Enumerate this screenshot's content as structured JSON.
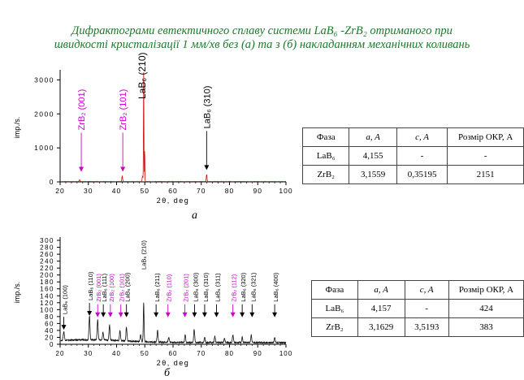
{
  "title": {
    "line1": "Дифрактограми евтектичного сплаву системи LaB₆ -ZrB₂ отриманого при",
    "line2": "швидкості кристалізації 1 мм/хв без (а) та з (б) накладанням механічних коливань"
  },
  "captions": {
    "a": "а",
    "b": "б"
  },
  "colors": {
    "line_a": "#cc1111",
    "line_b": "#111111",
    "zr_label": "#cc00cc",
    "la_label": "#000000",
    "title": "#1a7a2a"
  },
  "chart_data": [
    {
      "type": "line",
      "xlabel": "2θ, deg",
      "ylabel": "imp./s.",
      "xlim": [
        20,
        100
      ],
      "ylim": [
        0,
        3200
      ],
      "xticks": [
        20,
        30,
        40,
        50,
        60,
        70,
        80,
        90,
        100
      ],
      "yticks": [
        0,
        1000,
        2000,
        3000
      ],
      "xticklabels": [
        "20",
        "30",
        "40",
        "50",
        "60",
        "70",
        "80",
        "90",
        "100"
      ],
      "yticklabels": [
        "0",
        "1000",
        "2000",
        "3000"
      ],
      "baseline": 10,
      "peaks": [
        {
          "x": 26.9,
          "y": 50,
          "w": 0.25
        },
        {
          "x": 42.0,
          "y": 160,
          "w": 0.2
        },
        {
          "x": 49.2,
          "y": 150,
          "w": 0.2
        },
        {
          "x": 49.6,
          "y": 3300,
          "w": 0.12
        },
        {
          "x": 49.95,
          "y": 900,
          "w": 0.1
        },
        {
          "x": 71.9,
          "y": 200,
          "w": 0.18
        }
      ],
      "annotations": [
        {
          "x": 27.5,
          "text": "ZrB₂ (001)",
          "phase": "Zr",
          "y_tip": 300
        },
        {
          "x": 42.2,
          "text": "ZrB₂ (101)",
          "phase": "Zr",
          "y_tip": 300
        },
        {
          "x": 49.0,
          "text": "LaB₆ (210)",
          "phase": "La",
          "y_tip": -1
        },
        {
          "x": 71.9,
          "text": "LaB₆ (310)",
          "phase": "La",
          "y_tip": 350
        }
      ]
    },
    {
      "type": "line",
      "xlabel": "2θ, deg",
      "ylabel": "imp./s.",
      "xlim": [
        20,
        100
      ],
      "ylim": [
        0,
        300
      ],
      "xticks": [
        20,
        30,
        40,
        50,
        60,
        70,
        80,
        90,
        100
      ],
      "yticks": [
        0,
        20,
        40,
        60,
        80,
        100,
        120,
        140,
        160,
        180,
        200,
        220,
        240,
        260,
        280,
        300
      ],
      "xticklabels": [
        "20",
        "30",
        "40",
        "50",
        "60",
        "70",
        "80",
        "90",
        "100"
      ],
      "yticklabels": [
        "0",
        "20",
        "40",
        "60",
        "80",
        "100",
        "120",
        "140",
        "160",
        "180",
        "200",
        "220",
        "240",
        "260",
        "280",
        "300"
      ],
      "baseline": 5,
      "peaks": [
        {
          "x": 21.3,
          "y": 25,
          "w": 0.3
        },
        {
          "x": 30.4,
          "y": 70,
          "w": 0.25
        },
        {
          "x": 33.3,
          "y": 60,
          "w": 0.25
        },
        {
          "x": 35.2,
          "y": 22,
          "w": 0.25
        },
        {
          "x": 37.5,
          "y": 45,
          "w": 0.25
        },
        {
          "x": 41.2,
          "y": 30,
          "w": 0.25
        },
        {
          "x": 43.5,
          "y": 40,
          "w": 0.25
        },
        {
          "x": 48.5,
          "y": 20,
          "w": 0.25
        },
        {
          "x": 49.6,
          "y": 112,
          "w": 0.2
        },
        {
          "x": 54.5,
          "y": 35,
          "w": 0.25
        },
        {
          "x": 58.5,
          "y": 14,
          "w": 0.25
        },
        {
          "x": 64.3,
          "y": 22,
          "w": 0.25
        },
        {
          "x": 67.5,
          "y": 38,
          "w": 0.25
        },
        {
          "x": 71.2,
          "y": 15,
          "w": 0.25
        },
        {
          "x": 74.8,
          "y": 18,
          "w": 0.25
        },
        {
          "x": 78.2,
          "y": 12,
          "w": 0.25
        },
        {
          "x": 81.2,
          "y": 22,
          "w": 0.25
        },
        {
          "x": 84.5,
          "y": 15,
          "w": 0.25
        },
        {
          "x": 87.7,
          "y": 22,
          "w": 0.25
        },
        {
          "x": 96.0,
          "y": 14,
          "w": 0.25
        }
      ],
      "annotations": [
        {
          "x": 21.3,
          "text": "LaB₆ (100)",
          "phase": "La",
          "y_tip": 42
        },
        {
          "x": 30.4,
          "text": "LaB₆ (110)",
          "phase": "La",
          "y_tip": 82
        },
        {
          "x": 33.3,
          "text": "ZrB₂ (001)",
          "phase": "Zr",
          "y_tip": 78
        },
        {
          "x": 35.3,
          "text": "LaB₆ (111)",
          "phase": "La",
          "y_tip": 78
        },
        {
          "x": 37.8,
          "text": "ZrB₂ (100)",
          "phase": "Zr",
          "y_tip": 78
        },
        {
          "x": 41.5,
          "text": "ZrB₂ (101)",
          "phase": "Zr",
          "y_tip": 78
        },
        {
          "x": 43.5,
          "text": "LaB₆ (200)",
          "phase": "La",
          "y_tip": 78
        },
        {
          "x": 49.2,
          "text": "LaB₆ (210)",
          "phase": "La",
          "y_tip": -1
        },
        {
          "x": 54.0,
          "text": "LaB₆ (211)",
          "phase": "La",
          "y_tip": 78
        },
        {
          "x": 58.2,
          "text": "ZrB₂ (110)",
          "phase": "Zr",
          "y_tip": 78
        },
        {
          "x": 64.2,
          "text": "ZrB₂ (201)",
          "phase": "Zr",
          "y_tip": 78
        },
        {
          "x": 67.6,
          "text": "LaB₆ (300)",
          "phase": "La",
          "y_tip": 78
        },
        {
          "x": 71.2,
          "text": "LaB₆ (310)",
          "phase": "La",
          "y_tip": 78
        },
        {
          "x": 75.4,
          "text": "LaB₆ (311)",
          "phase": "La",
          "y_tip": 78
        },
        {
          "x": 81.2,
          "text": "ZrB₂ (112)",
          "phase": "Zr",
          "y_tip": 78
        },
        {
          "x": 84.5,
          "text": "LaB₆ (320)",
          "phase": "La",
          "y_tip": 78
        },
        {
          "x": 88.0,
          "text": "LaB₆ (321)",
          "phase": "La",
          "y_tip": 78
        },
        {
          "x": 96.0,
          "text": "LaB₆ (400)",
          "phase": "La",
          "y_tip": 78
        }
      ]
    }
  ],
  "table1": {
    "headers": [
      "Фаза",
      "a, A",
      "c, A",
      "Розмір ОКР, А"
    ],
    "rows": [
      {
        "phase": "LaB₆",
        "a": "4,155",
        "c": "-",
        "okr": "-"
      },
      {
        "phase": "ZrB₂",
        "a": "3,1559",
        "c": "0,35195",
        "okr": "2151"
      }
    ]
  },
  "table2": {
    "headers": [
      "Фаза",
      "a, A",
      "c, A",
      "Розмір ОКР, А"
    ],
    "rows": [
      {
        "phase": "LaB₆",
        "a": "4,157",
        "c": "-",
        "okr": "424"
      },
      {
        "phase": "ZrB₂",
        "a": "3,1629",
        "c": "3,5193",
        "okr": "383"
      }
    ]
  }
}
